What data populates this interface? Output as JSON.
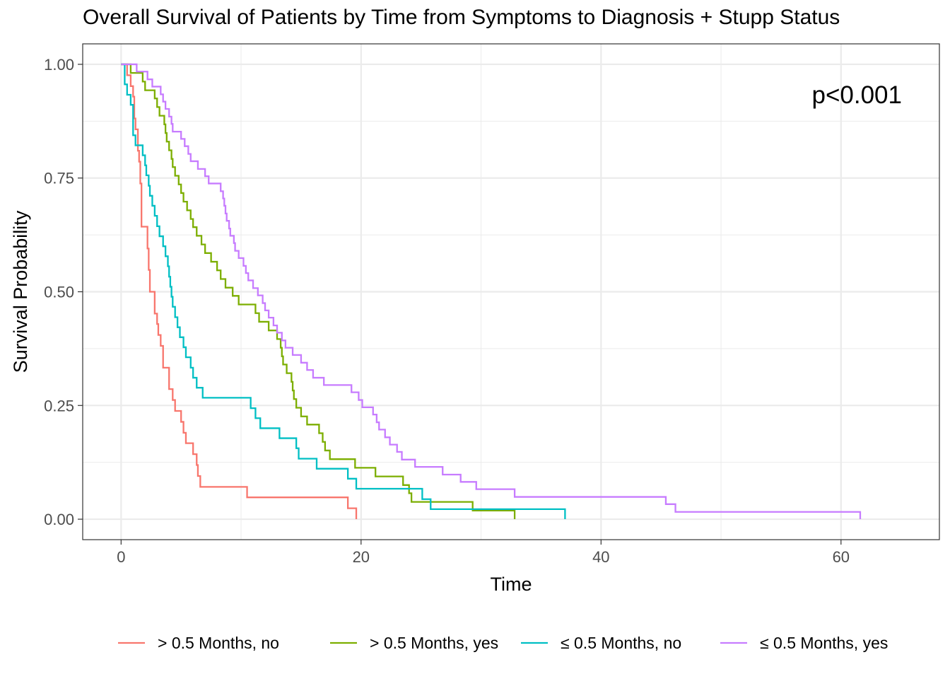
{
  "chart_data": {
    "type": "line",
    "subtype": "kaplan-meier-step",
    "title": "Overall Survival of Patients by Time from Symptoms to Diagnosis + Stupp Status",
    "xlabel": "Time",
    "ylabel": "Survival Probability",
    "xlim": [
      -3.2,
      68.2
    ],
    "ylim": [
      -0.045,
      1.045
    ],
    "xticks": [
      0,
      20,
      40,
      60
    ],
    "yticks": [
      0,
      0.25,
      0.5,
      0.75,
      1
    ],
    "ytick_labels": [
      "0.00",
      "0.25",
      "0.50",
      "0.75",
      "1.00"
    ],
    "grid": true,
    "legend_position": "bottom",
    "annotation": "p<0.001",
    "series": [
      {
        "name": "> 0.5 Months, no",
        "color": "#F8766D",
        "points": [
          [
            0,
            1
          ],
          [
            0.5,
            0.976
          ],
          [
            0.8,
            0.952
          ],
          [
            1.0,
            0.929
          ],
          [
            1.1,
            0.881
          ],
          [
            1.2,
            0.857
          ],
          [
            1.4,
            0.81
          ],
          [
            1.5,
            0.786
          ],
          [
            1.6,
            0.738
          ],
          [
            1.7,
            0.643
          ],
          [
            2.2,
            0.595
          ],
          [
            2.3,
            0.548
          ],
          [
            2.4,
            0.5
          ],
          [
            2.8,
            0.452
          ],
          [
            3.0,
            0.429
          ],
          [
            3.1,
            0.405
          ],
          [
            3.3,
            0.381
          ],
          [
            3.5,
            0.333
          ],
          [
            4.0,
            0.286
          ],
          [
            4.3,
            0.262
          ],
          [
            4.5,
            0.238
          ],
          [
            5.0,
            0.214
          ],
          [
            5.2,
            0.19
          ],
          [
            5.4,
            0.167
          ],
          [
            6.0,
            0.143
          ],
          [
            6.3,
            0.119
          ],
          [
            6.4,
            0.095
          ],
          [
            6.6,
            0.071
          ],
          [
            10.5,
            0.048
          ],
          [
            18.9,
            0.024
          ],
          [
            19.6,
            0
          ]
        ]
      },
      {
        "name": "> 0.5 Months, yes",
        "color": "#7CAE00",
        "points": [
          [
            0,
            1
          ],
          [
            0.8,
            0.981
          ],
          [
            1.8,
            0.962
          ],
          [
            2.0,
            0.943
          ],
          [
            2.8,
            0.925
          ],
          [
            3.0,
            0.906
          ],
          [
            3.2,
            0.887
          ],
          [
            3.6,
            0.868
          ],
          [
            3.7,
            0.849
          ],
          [
            3.8,
            0.83
          ],
          [
            4.0,
            0.811
          ],
          [
            4.2,
            0.792
          ],
          [
            4.3,
            0.774
          ],
          [
            4.5,
            0.755
          ],
          [
            4.8,
            0.736
          ],
          [
            5.0,
            0.717
          ],
          [
            5.2,
            0.698
          ],
          [
            5.5,
            0.679
          ],
          [
            5.8,
            0.66
          ],
          [
            6.0,
            0.642
          ],
          [
            6.3,
            0.623
          ],
          [
            6.7,
            0.604
          ],
          [
            7.0,
            0.585
          ],
          [
            7.5,
            0.566
          ],
          [
            8.0,
            0.547
          ],
          [
            8.3,
            0.528
          ],
          [
            8.7,
            0.509
          ],
          [
            9.3,
            0.491
          ],
          [
            9.8,
            0.472
          ],
          [
            11.2,
            0.453
          ],
          [
            11.5,
            0.434
          ],
          [
            12.3,
            0.415
          ],
          [
            13.0,
            0.396
          ],
          [
            13.3,
            0.377
          ],
          [
            13.4,
            0.358
          ],
          [
            13.5,
            0.34
          ],
          [
            13.8,
            0.321
          ],
          [
            14.2,
            0.302
          ],
          [
            14.3,
            0.283
          ],
          [
            14.4,
            0.264
          ],
          [
            14.6,
            0.245
          ],
          [
            15.0,
            0.226
          ],
          [
            15.5,
            0.208
          ],
          [
            16.5,
            0.189
          ],
          [
            16.8,
            0.17
          ],
          [
            17.0,
            0.151
          ],
          [
            17.4,
            0.132
          ],
          [
            19.5,
            0.113
          ],
          [
            21.2,
            0.094
          ],
          [
            23.5,
            0.075
          ],
          [
            24.0,
            0.057
          ],
          [
            24.2,
            0.038
          ],
          [
            29.3,
            0.019
          ],
          [
            32.8,
            0
          ]
        ]
      },
      {
        "name": "≤ 0.5 Months, no",
        "color": "#00BFC4",
        "points": [
          [
            0,
            1
          ],
          [
            0.3,
            0.956
          ],
          [
            0.5,
            0.933
          ],
          [
            0.8,
            0.911
          ],
          [
            1.0,
            0.844
          ],
          [
            1.2,
            0.822
          ],
          [
            1.8,
            0.8
          ],
          [
            2.0,
            0.778
          ],
          [
            2.1,
            0.756
          ],
          [
            2.3,
            0.733
          ],
          [
            2.4,
            0.711
          ],
          [
            2.6,
            0.689
          ],
          [
            2.8,
            0.667
          ],
          [
            3.0,
            0.644
          ],
          [
            3.2,
            0.622
          ],
          [
            3.5,
            0.6
          ],
          [
            3.7,
            0.578
          ],
          [
            3.9,
            0.556
          ],
          [
            4.0,
            0.533
          ],
          [
            4.1,
            0.511
          ],
          [
            4.2,
            0.489
          ],
          [
            4.3,
            0.467
          ],
          [
            4.5,
            0.444
          ],
          [
            4.7,
            0.422
          ],
          [
            4.9,
            0.4
          ],
          [
            5.2,
            0.378
          ],
          [
            5.4,
            0.356
          ],
          [
            5.8,
            0.333
          ],
          [
            6.0,
            0.311
          ],
          [
            6.3,
            0.289
          ],
          [
            6.8,
            0.267
          ],
          [
            10.8,
            0.244
          ],
          [
            11.2,
            0.222
          ],
          [
            11.6,
            0.2
          ],
          [
            13.2,
            0.178
          ],
          [
            14.6,
            0.156
          ],
          [
            14.8,
            0.133
          ],
          [
            16.3,
            0.111
          ],
          [
            18.9,
            0.089
          ],
          [
            19.6,
            0.067
          ],
          [
            25.1,
            0.044
          ],
          [
            25.8,
            0.022
          ],
          [
            37.0,
            0
          ]
        ]
      },
      {
        "name": "≤ 0.5 Months, yes",
        "color": "#C77CFF",
        "points": [
          [
            0,
            1
          ],
          [
            1.3,
            0.984
          ],
          [
            2.2,
            0.967
          ],
          [
            2.6,
            0.951
          ],
          [
            3.3,
            0.934
          ],
          [
            3.5,
            0.918
          ],
          [
            3.7,
            0.902
          ],
          [
            4.0,
            0.885
          ],
          [
            4.2,
            0.869
          ],
          [
            4.3,
            0.852
          ],
          [
            5.0,
            0.836
          ],
          [
            5.3,
            0.82
          ],
          [
            5.6,
            0.803
          ],
          [
            5.8,
            0.787
          ],
          [
            6.4,
            0.77
          ],
          [
            7.0,
            0.754
          ],
          [
            7.3,
            0.738
          ],
          [
            8.3,
            0.721
          ],
          [
            8.5,
            0.705
          ],
          [
            8.6,
            0.689
          ],
          [
            8.7,
            0.672
          ],
          [
            8.8,
            0.656
          ],
          [
            9.0,
            0.639
          ],
          [
            9.1,
            0.623
          ],
          [
            9.4,
            0.607
          ],
          [
            9.5,
            0.59
          ],
          [
            9.8,
            0.574
          ],
          [
            10.2,
            0.557
          ],
          [
            10.4,
            0.541
          ],
          [
            10.6,
            0.525
          ],
          [
            11.0,
            0.508
          ],
          [
            11.4,
            0.492
          ],
          [
            11.8,
            0.475
          ],
          [
            12.0,
            0.459
          ],
          [
            12.3,
            0.443
          ],
          [
            12.7,
            0.426
          ],
          [
            13.0,
            0.41
          ],
          [
            13.4,
            0.393
          ],
          [
            13.7,
            0.377
          ],
          [
            14.3,
            0.361
          ],
          [
            15.0,
            0.344
          ],
          [
            15.5,
            0.328
          ],
          [
            16.0,
            0.311
          ],
          [
            16.9,
            0.295
          ],
          [
            19.2,
            0.279
          ],
          [
            19.8,
            0.262
          ],
          [
            20.1,
            0.246
          ],
          [
            21.0,
            0.23
          ],
          [
            21.3,
            0.213
          ],
          [
            21.5,
            0.197
          ],
          [
            22.0,
            0.18
          ],
          [
            22.4,
            0.164
          ],
          [
            23.0,
            0.148
          ],
          [
            23.4,
            0.131
          ],
          [
            24.5,
            0.115
          ],
          [
            26.8,
            0.098
          ],
          [
            28.3,
            0.082
          ],
          [
            29.6,
            0.066
          ],
          [
            32.8,
            0.049
          ],
          [
            45.4,
            0.033
          ],
          [
            46.2,
            0.016
          ],
          [
            61.6,
            0
          ]
        ]
      }
    ]
  }
}
